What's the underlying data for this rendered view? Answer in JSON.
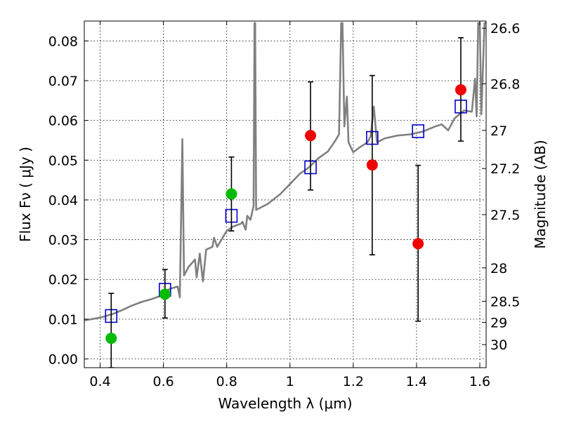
{
  "chart_data": {
    "type": "scatter",
    "xlabel": "Wavelength  λ (μm)",
    "ylabel": "Flux  Fν  ( μJy )",
    "ylabel_right": "Magnitude (AB)",
    "xlim": [
      0.35,
      1.62
    ],
    "ylim": [
      -0.0022,
      0.085
    ],
    "grid": true,
    "x_ticks": [
      0.4,
      0.6,
      0.8,
      1.0,
      1.2,
      1.4,
      1.6
    ],
    "x_tick_labels": [
      "0.4",
      "0.6",
      "0.8",
      "1",
      "1.2",
      "1.4",
      "1.6"
    ],
    "y_ticks": [
      0.0,
      0.01,
      0.02,
      0.03,
      0.04,
      0.05,
      0.06,
      0.07,
      0.08
    ],
    "y_tick_labels": [
      "0.00",
      "0.01",
      "0.02",
      "0.03",
      "0.04",
      "0.05",
      "0.06",
      "0.07",
      "0.08"
    ],
    "right_ticks": [
      {
        "label": "26.6",
        "flux": 0.0832
      },
      {
        "label": "26.8",
        "flux": 0.0692
      },
      {
        "label": "27",
        "flux": 0.0575
      },
      {
        "label": "27.2",
        "flux": 0.0479
      },
      {
        "label": "27.5",
        "flux": 0.0363
      },
      {
        "label": "28",
        "flux": 0.0229
      },
      {
        "label": "28.5",
        "flux": 0.0145
      },
      {
        "label": "29",
        "flux": 0.0092
      },
      {
        "label": "30",
        "flux": 0.0036
      }
    ],
    "series": [
      {
        "type": "line",
        "color": "#808080",
        "points": [
          [
            0.35,
            0.0097
          ],
          [
            0.38,
            0.0101
          ],
          [
            0.41,
            0.0106
          ],
          [
            0.44,
            0.0113
          ],
          [
            0.47,
            0.0123
          ],
          [
            0.5,
            0.0134
          ],
          [
            0.53,
            0.0143
          ],
          [
            0.56,
            0.015
          ],
          [
            0.59,
            0.0158
          ],
          [
            0.62,
            0.0176
          ],
          [
            0.645,
            0.0182
          ],
          [
            0.652,
            0.0155
          ],
          [
            0.66,
            0.0553
          ],
          [
            0.665,
            0.021
          ],
          [
            0.68,
            0.0232
          ],
          [
            0.7,
            0.025
          ],
          [
            0.705,
            0.0205
          ],
          [
            0.715,
            0.0265
          ],
          [
            0.725,
            0.0195
          ],
          [
            0.735,
            0.0275
          ],
          [
            0.755,
            0.0282
          ],
          [
            0.76,
            0.0305
          ],
          [
            0.77,
            0.0282
          ],
          [
            0.8,
            0.0322
          ],
          [
            0.82,
            0.0333
          ],
          [
            0.845,
            0.034
          ],
          [
            0.85,
            0.0345
          ],
          [
            0.86,
            0.0325
          ],
          [
            0.865,
            0.036
          ],
          [
            0.875,
            0.035
          ],
          [
            0.885,
            0.0385
          ],
          [
            0.888,
            0.0845
          ],
          [
            0.89,
            0.0845
          ],
          [
            0.893,
            0.0375
          ],
          [
            0.93,
            0.039
          ],
          [
            0.97,
            0.0415
          ],
          [
            1.0,
            0.044
          ],
          [
            1.03,
            0.0465
          ],
          [
            1.06,
            0.0482
          ],
          [
            1.09,
            0.0505
          ],
          [
            1.12,
            0.0522
          ],
          [
            1.14,
            0.0545
          ],
          [
            1.155,
            0.0565
          ],
          [
            1.162,
            0.0845
          ],
          [
            1.166,
            0.0845
          ],
          [
            1.172,
            0.0585
          ],
          [
            1.18,
            0.066
          ],
          [
            1.185,
            0.0545
          ],
          [
            1.2,
            0.052
          ],
          [
            1.22,
            0.0532
          ],
          [
            1.245,
            0.0545
          ],
          [
            1.255,
            0.056
          ],
          [
            1.265,
            0.0635
          ],
          [
            1.275,
            0.0545
          ],
          [
            1.3,
            0.0555
          ],
          [
            1.34,
            0.0562
          ],
          [
            1.38,
            0.0565
          ],
          [
            1.42,
            0.0572
          ],
          [
            1.46,
            0.0585
          ],
          [
            1.48,
            0.059
          ],
          [
            1.5,
            0.0575
          ],
          [
            1.52,
            0.0605
          ],
          [
            1.55,
            0.0625
          ],
          [
            1.575,
            0.0622
          ],
          [
            1.585,
            0.0705
          ],
          [
            1.59,
            0.061
          ],
          [
            1.595,
            0.0845
          ],
          [
            1.6,
            0.0845
          ],
          [
            1.605,
            0.0615
          ],
          [
            1.615,
            0.0845
          ],
          [
            1.62,
            0.0845
          ]
        ]
      },
      {
        "type": "markers",
        "marker": "open-square",
        "color": "#0000cc",
        "points": [
          [
            0.435,
            0.0108
          ],
          [
            0.605,
            0.0174
          ],
          [
            0.815,
            0.036
          ],
          [
            1.065,
            0.0482
          ],
          [
            1.26,
            0.0556
          ],
          [
            1.405,
            0.0573
          ],
          [
            1.54,
            0.0635
          ]
        ]
      },
      {
        "type": "markers",
        "marker": "circle",
        "color": "#00bb00",
        "points": [
          {
            "x": 0.435,
            "y": 0.0052,
            "yerr_low": -0.0022,
            "yerr_high": 0.0165
          },
          {
            "x": 0.605,
            "y": 0.0163,
            "yerr_low": 0.0103,
            "yerr_high": 0.0225
          },
          {
            "x": 0.815,
            "y": 0.0415,
            "yerr_low": 0.0322,
            "yerr_high": 0.0508
          }
        ]
      },
      {
        "type": "markers",
        "marker": "circle",
        "color": "#ee0000",
        "points": [
          {
            "x": 1.065,
            "y": 0.0562,
            "yerr_low": 0.0425,
            "yerr_high": 0.0697
          },
          {
            "x": 1.26,
            "y": 0.0488,
            "yerr_low": 0.0262,
            "yerr_high": 0.0713
          },
          {
            "x": 1.405,
            "y": 0.029,
            "yerr_low": 0.0095,
            "yerr_high": 0.0487
          },
          {
            "x": 1.54,
            "y": 0.0677,
            "yerr_low": 0.0548,
            "yerr_high": 0.0808
          }
        ]
      }
    ]
  }
}
